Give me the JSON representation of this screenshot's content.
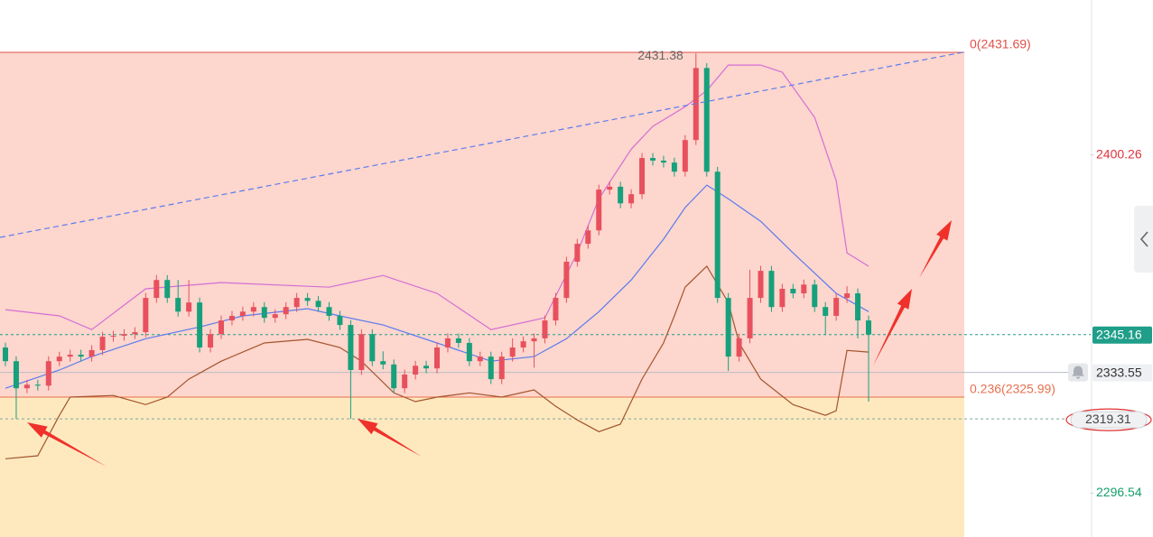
{
  "chart_data": {
    "type": "candlestick",
    "ylim": [
      2283.1,
      2447.74
    ],
    "yticks": [
      2400.26,
      2296.54
    ],
    "ytick_colors": [
      "#e0323c",
      "#16a06c"
    ],
    "up_color": "#e8505e",
    "down_color": "#17a07c",
    "open": [
      2341.2,
      2337.0,
      2328.7,
      2329.8,
      2329.5,
      2337.0,
      2338.4,
      2339.0,
      2338.4,
      2340.4,
      2344.5,
      2344.8,
      2345.3,
      2345.9,
      2356.4,
      2361.9,
      2356.4,
      2352.2,
      2355.0,
      2341.2,
      2345.3,
      2349.5,
      2350.9,
      2352.2,
      2353.6,
      2350.3,
      2351.4,
      2353.6,
      2356.4,
      2355.5,
      2353.6,
      2350.9,
      2348.1,
      2334.3,
      2345.3,
      2337.0,
      2336.0,
      2328.7,
      2332.9,
      2335.6,
      2334.8,
      2341.2,
      2344.0,
      2342.6,
      2337.0,
      2338.4,
      2331.5,
      2338.4,
      2341.2,
      2343.1,
      2344.0,
      2349.5,
      2356.4,
      2367.5,
      2373.0,
      2377.1,
      2389.6,
      2390.5,
      2385.4,
      2388.2,
      2399.3,
      2398.5,
      2397.9,
      2395.1,
      2404.8,
      2426.9,
      2395.1,
      2356.4,
      2338.4,
      2344.0,
      2356.4,
      2364.7,
      2353.6,
      2359.2,
      2357.8,
      2360.5,
      2353.6,
      2350.9,
      2356.4,
      2357.8,
      2349.5
    ],
    "high": [
      2342.7,
      2338.5,
      2331.3,
      2331.3,
      2338.5,
      2339.9,
      2340.5,
      2340.5,
      2341.9,
      2346.0,
      2346.3,
      2346.8,
      2347.4,
      2357.9,
      2363.4,
      2363.4,
      2361.9,
      2361.9,
      2356.5,
      2346.8,
      2351.0,
      2352.4,
      2353.7,
      2355.1,
      2355.1,
      2352.9,
      2355.1,
      2357.9,
      2357.9,
      2357.0,
      2355.1,
      2352.4,
      2349.6,
      2346.8,
      2346.8,
      2340.0,
      2337.5,
      2334.4,
      2337.1,
      2337.1,
      2342.7,
      2345.5,
      2345.5,
      2344.1,
      2339.9,
      2339.9,
      2339.9,
      2344.0,
      2344.6,
      2345.5,
      2351.0,
      2357.9,
      2369.0,
      2374.5,
      2378.6,
      2391.1,
      2392.0,
      2392.0,
      2389.7,
      2400.8,
      2400.8,
      2400.0,
      2399.4,
      2406.3,
      2431.38,
      2428.4,
      2396.6,
      2357.9,
      2345.5,
      2365.0,
      2366.2,
      2366.2,
      2360.7,
      2360.7,
      2362.0,
      2362.0,
      2355.1,
      2357.9,
      2360.0,
      2359.3,
      2351.0
    ],
    "low": [
      2335.5,
      2319.31,
      2327.2,
      2328.0,
      2328.0,
      2335.5,
      2336.9,
      2336.9,
      2336.9,
      2338.9,
      2343.0,
      2343.3,
      2343.8,
      2344.4,
      2354.9,
      2354.9,
      2350.7,
      2350.7,
      2339.7,
      2339.7,
      2343.8,
      2348.0,
      2349.4,
      2350.7,
      2348.8,
      2348.8,
      2349.9,
      2352.1,
      2354.0,
      2352.1,
      2349.4,
      2346.6,
      2319.31,
      2332.8,
      2335.5,
      2334.5,
      2327.2,
      2327.2,
      2331.4,
      2333.3,
      2333.3,
      2339.7,
      2341.1,
      2335.5,
      2335.5,
      2330.0,
      2330.0,
      2336.9,
      2339.7,
      2335.0,
      2342.5,
      2348.0,
      2354.9,
      2366.0,
      2371.5,
      2375.6,
      2388.1,
      2383.9,
      2383.9,
      2386.7,
      2397.0,
      2396.4,
      2393.6,
      2393.6,
      2403.3,
      2393.6,
      2354.9,
      2334.0,
      2336.9,
      2342.5,
      2354.9,
      2352.1,
      2352.1,
      2356.3,
      2356.3,
      2352.1,
      2345.0,
      2349.4,
      2354.9,
      2344.0,
      2324.6
    ],
    "close": [
      2337.0,
      2328.7,
      2329.8,
      2329.5,
      2337.0,
      2338.4,
      2339.0,
      2338.4,
      2340.4,
      2344.5,
      2344.8,
      2345.3,
      2345.9,
      2356.4,
      2361.9,
      2356.4,
      2352.2,
      2355.0,
      2341.2,
      2345.3,
      2349.5,
      2350.9,
      2352.2,
      2353.6,
      2350.3,
      2351.4,
      2353.6,
      2356.4,
      2355.5,
      2353.6,
      2350.9,
      2348.1,
      2334.3,
      2345.3,
      2337.0,
      2336.0,
      2328.7,
      2332.9,
      2335.6,
      2334.8,
      2341.2,
      2344.0,
      2342.6,
      2337.0,
      2338.4,
      2331.5,
      2338.4,
      2341.2,
      2343.1,
      2344.0,
      2349.5,
      2356.4,
      2367.5,
      2373.0,
      2377.1,
      2389.6,
      2390.5,
      2385.4,
      2388.2,
      2399.3,
      2398.5,
      2397.9,
      2395.1,
      2404.8,
      2426.9,
      2395.1,
      2356.4,
      2338.4,
      2344.0,
      2356.4,
      2364.7,
      2353.6,
      2359.2,
      2357.8,
      2360.5,
      2353.6,
      2350.9,
      2356.4,
      2357.8,
      2349.5,
      2345.16
    ],
    "indicators": [
      {
        "color": "#d46fd6",
        "x": [
          0,
          5,
          8,
          13,
          20,
          30,
          35,
          40,
          45,
          50,
          53,
          55,
          58,
          60,
          63,
          65,
          67,
          70,
          72,
          75,
          77,
          78,
          80
        ],
        "values": [
          2352.8,
          2350.9,
          2346.7,
          2359.2,
          2361.1,
          2359.7,
          2363.3,
          2357.8,
          2346.7,
          2350.3,
          2370.2,
          2386.8,
          2402.0,
          2409.0,
          2415.0,
          2420.0,
          2427.8,
          2427.8,
          2425.6,
          2411.7,
          2392.4,
          2370.2,
          2366.1
        ]
      },
      {
        "color": "#5a7bef",
        "x": [
          0,
          5,
          8,
          13,
          18,
          22,
          28,
          31,
          35,
          40,
          45,
          49,
          52,
          55,
          58,
          61,
          63,
          65,
          67,
          70,
          73,
          77,
          80
        ],
        "values": [
          2328.7,
          2334.3,
          2338.4,
          2343.9,
          2347.5,
          2350.9,
          2353.1,
          2350.9,
          2348.1,
          2342.6,
          2337.0,
          2338.4,
          2343.9,
          2352.2,
          2361.9,
          2374.4,
          2384.1,
          2391.0,
          2386.8,
          2379.9,
          2370.2,
          2357.8,
          2352.2
        ]
      },
      {
        "color": "#a3542c",
        "x": [
          0,
          3,
          5,
          6,
          10,
          13,
          15,
          17,
          20,
          24,
          28,
          31,
          33,
          36,
          38,
          40,
          43,
          46,
          49,
          51,
          53,
          55,
          57,
          59,
          61,
          62,
          63,
          65,
          67,
          68,
          70,
          73,
          76,
          77,
          78,
          80
        ],
        "values": [
          2307.1,
          2308.0,
          2320.4,
          2326.0,
          2326.5,
          2323.7,
          2326.0,
          2331.5,
          2337.0,
          2342.6,
          2343.7,
          2341.2,
          2337.0,
          2327.3,
          2324.6,
          2326.0,
          2327.3,
          2326.0,
          2328.2,
          2323.2,
          2319.0,
          2315.4,
          2317.7,
          2331.5,
          2342.6,
          2350.9,
          2359.7,
          2366.1,
          2355.0,
          2342.6,
          2331.5,
          2323.7,
          2320.4,
          2321.8,
          2340.3,
          2339.8
        ]
      }
    ],
    "fib_levels": [
      {
        "value": 2431.69,
        "label": "0(2431.69)",
        "color": "#e0504a",
        "fill": "#fdd6cd"
      },
      {
        "value": 2325.99,
        "label": "0.236(2325.99)",
        "color": "#e8704e",
        "fill": "#fee9bf"
      }
    ],
    "current_color": "#1f9e89",
    "price_lines": [
      {
        "value": 2333.55,
        "style": "solid"
      },
      {
        "value": 2319.31,
        "style": "dashed"
      }
    ]
  }
}
